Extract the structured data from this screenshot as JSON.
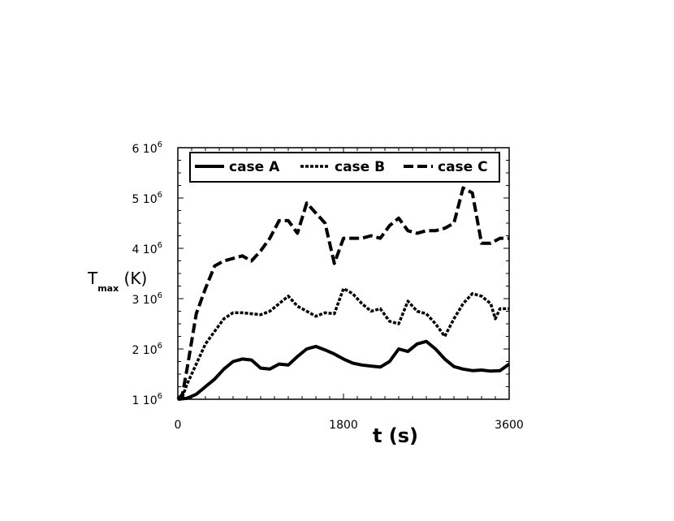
{
  "chart_data": {
    "type": "line",
    "xlabel": "t (s)",
    "ylabel": {
      "main": "T",
      "subscript": "max",
      "unit": " (K)"
    },
    "xlim": [
      0,
      3600
    ],
    "ylim": [
      1000000,
      6000000
    ],
    "x_ticks": [
      {
        "value": 0,
        "label": "0"
      },
      {
        "value": 1800,
        "label": "1800"
      },
      {
        "value": 3600,
        "label": "3600"
      }
    ],
    "y_ticks": [
      {
        "value": 1000000,
        "base": "1 10",
        "exp": "6"
      },
      {
        "value": 2000000,
        "base": "2 10",
        "exp": "6"
      },
      {
        "value": 3000000,
        "base": "3 10",
        "exp": "6"
      },
      {
        "value": 4000000,
        "base": "4 10",
        "exp": "6"
      },
      {
        "value": 5000000,
        "base": "5 10",
        "exp": "6"
      },
      {
        "value": 6000000,
        "base": "6 10",
        "exp": "6"
      }
    ],
    "grid": false,
    "legend_position": "top",
    "series": [
      {
        "name": "case A",
        "style": "solid",
        "points": [
          [
            0,
            1000000
          ],
          [
            100,
            1020000
          ],
          [
            200,
            1100000
          ],
          [
            300,
            1250000
          ],
          [
            400,
            1400000
          ],
          [
            500,
            1600000
          ],
          [
            600,
            1750000
          ],
          [
            700,
            1800000
          ],
          [
            800,
            1780000
          ],
          [
            900,
            1620000
          ],
          [
            1000,
            1600000
          ],
          [
            1100,
            1700000
          ],
          [
            1200,
            1680000
          ],
          [
            1300,
            1850000
          ],
          [
            1400,
            2000000
          ],
          [
            1500,
            2050000
          ],
          [
            1600,
            1980000
          ],
          [
            1700,
            1900000
          ],
          [
            1800,
            1800000
          ],
          [
            1900,
            1720000
          ],
          [
            2000,
            1680000
          ],
          [
            2100,
            1660000
          ],
          [
            2200,
            1640000
          ],
          [
            2300,
            1750000
          ],
          [
            2400,
            2000000
          ],
          [
            2500,
            1950000
          ],
          [
            2600,
            2100000
          ],
          [
            2700,
            2150000
          ],
          [
            2800,
            2000000
          ],
          [
            2900,
            1800000
          ],
          [
            3000,
            1650000
          ],
          [
            3100,
            1600000
          ],
          [
            3200,
            1570000
          ],
          [
            3300,
            1580000
          ],
          [
            3400,
            1560000
          ],
          [
            3500,
            1570000
          ],
          [
            3600,
            1700000
          ]
        ]
      },
      {
        "name": "case B",
        "style": "dotted",
        "points": [
          [
            0,
            1000000
          ],
          [
            50,
            1050000
          ],
          [
            100,
            1300000
          ],
          [
            200,
            1700000
          ],
          [
            300,
            2100000
          ],
          [
            400,
            2350000
          ],
          [
            500,
            2600000
          ],
          [
            600,
            2720000
          ],
          [
            700,
            2720000
          ],
          [
            800,
            2700000
          ],
          [
            900,
            2680000
          ],
          [
            1000,
            2750000
          ],
          [
            1100,
            2900000
          ],
          [
            1200,
            3050000
          ],
          [
            1300,
            2850000
          ],
          [
            1400,
            2750000
          ],
          [
            1500,
            2650000
          ],
          [
            1600,
            2720000
          ],
          [
            1700,
            2700000
          ],
          [
            1800,
            3200000
          ],
          [
            1900,
            3100000
          ],
          [
            2000,
            2900000
          ],
          [
            2100,
            2750000
          ],
          [
            2200,
            2800000
          ],
          [
            2300,
            2550000
          ],
          [
            2400,
            2500000
          ],
          [
            2500,
            2950000
          ],
          [
            2600,
            2750000
          ],
          [
            2700,
            2700000
          ],
          [
            2800,
            2500000
          ],
          [
            2900,
            2250000
          ],
          [
            3000,
            2600000
          ],
          [
            3100,
            2900000
          ],
          [
            3200,
            3100000
          ],
          [
            3300,
            3050000
          ],
          [
            3400,
            2900000
          ],
          [
            3450,
            2600000
          ],
          [
            3500,
            2800000
          ],
          [
            3600,
            2800000
          ]
        ]
      },
      {
        "name": "case C",
        "style": "dashed",
        "points": [
          [
            0,
            1000000
          ],
          [
            50,
            1100000
          ],
          [
            100,
            1600000
          ],
          [
            200,
            2700000
          ],
          [
            300,
            3200000
          ],
          [
            400,
            3650000
          ],
          [
            500,
            3750000
          ],
          [
            600,
            3800000
          ],
          [
            700,
            3850000
          ],
          [
            800,
            3750000
          ],
          [
            900,
            3950000
          ],
          [
            1000,
            4200000
          ],
          [
            1100,
            4550000
          ],
          [
            1200,
            4550000
          ],
          [
            1300,
            4300000
          ],
          [
            1400,
            4900000
          ],
          [
            1500,
            4700000
          ],
          [
            1600,
            4500000
          ],
          [
            1700,
            3700000
          ],
          [
            1800,
            4200000
          ],
          [
            1900,
            4200000
          ],
          [
            2000,
            4200000
          ],
          [
            2100,
            4250000
          ],
          [
            2200,
            4200000
          ],
          [
            2300,
            4450000
          ],
          [
            2400,
            4600000
          ],
          [
            2500,
            4350000
          ],
          [
            2600,
            4300000
          ],
          [
            2700,
            4350000
          ],
          [
            2800,
            4350000
          ],
          [
            2900,
            4400000
          ],
          [
            3000,
            4500000
          ],
          [
            3100,
            5200000
          ],
          [
            3200,
            5100000
          ],
          [
            3300,
            4100000
          ],
          [
            3400,
            4100000
          ],
          [
            3500,
            4200000
          ],
          [
            3600,
            4200000
          ]
        ]
      }
    ]
  }
}
